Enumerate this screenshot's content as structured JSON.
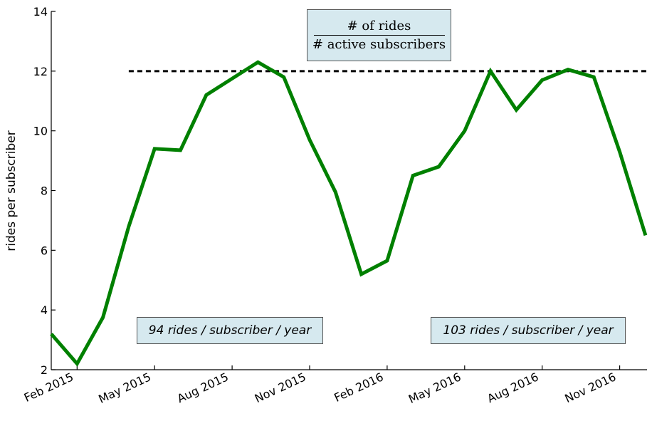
{
  "chart_data": {
    "type": "line",
    "ylabel": "rides per subscriber",
    "xlabel": "",
    "ylim": [
      2,
      14
    ],
    "yticks": [
      2,
      4,
      6,
      8,
      10,
      12,
      14
    ],
    "xtick_labels": [
      "Feb 2015",
      "May 2015",
      "Aug 2015",
      "Nov 2015",
      "Feb 2016",
      "May 2016",
      "Aug 2016",
      "Nov 2016"
    ],
    "x": [
      "2015-01",
      "2015-02",
      "2015-03",
      "2015-04",
      "2015-05",
      "2015-06",
      "2015-07",
      "2015-08",
      "2015-09",
      "2015-10",
      "2015-11",
      "2015-12",
      "2016-01",
      "2016-02",
      "2016-03",
      "2016-04",
      "2016-05",
      "2016-06",
      "2016-07",
      "2016-08",
      "2016-09",
      "2016-10",
      "2016-11",
      "2016-12"
    ],
    "series": [
      {
        "values": [
          3.2,
          2.2,
          3.75,
          6.8,
          9.4,
          9.35,
          11.2,
          11.75,
          12.3,
          11.8,
          9.7,
          7.95,
          5.2,
          5.65,
          8.5,
          8.8,
          10.0,
          12.0,
          10.7,
          11.7,
          12.05,
          11.8,
          9.3,
          6.5
        ],
        "color": "#008000"
      }
    ],
    "reference_line": {
      "y": 12,
      "style": "dashed",
      "color": "#000000",
      "x_start": "2015-04"
    },
    "formula": {
      "numerator": "# of rides",
      "denominator": "# active subscribers"
    },
    "annotations": [
      "94 rides / subscriber / year",
      "103 rides / subscriber / year"
    ],
    "grid": false,
    "legend": "none"
  }
}
